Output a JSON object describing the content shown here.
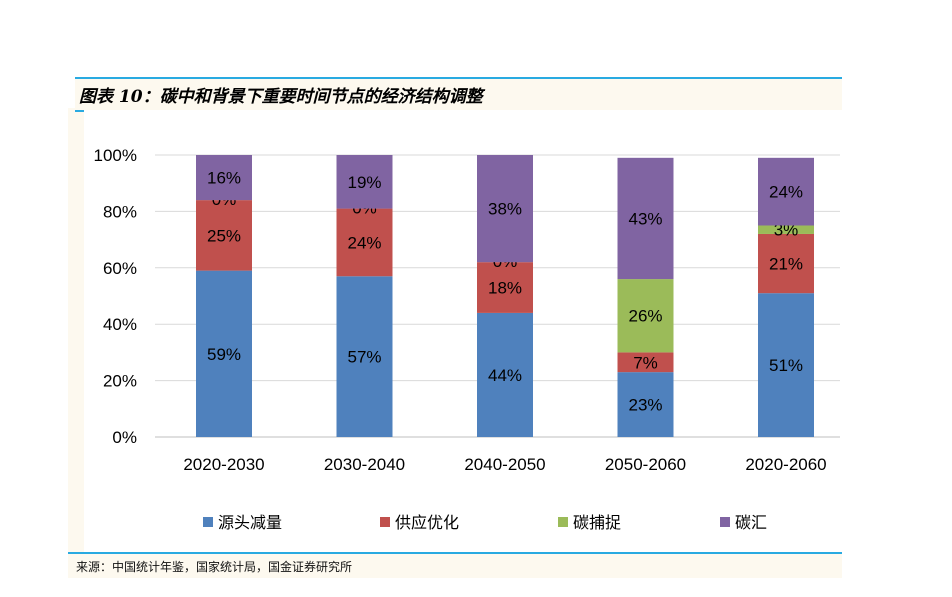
{
  "title": "图表 10：碳中和背景下重要时间节点的经济结构调整",
  "source": "来源：中国统计年鉴，国家统计局，国金证券研究所",
  "chart_data": {
    "type": "bar",
    "stacked": true,
    "categories": [
      "2020-2030",
      "2030-2040",
      "2040-2050",
      "2050-2060",
      "2020-2060"
    ],
    "series": [
      {
        "name": "源头减量",
        "color": "#4f81bd",
        "values": [
          59,
          57,
          44,
          23,
          51
        ]
      },
      {
        "name": "供应优化",
        "color": "#c0504d",
        "values": [
          25,
          24,
          18,
          7,
          21
        ]
      },
      {
        "name": "碳捕捉",
        "color": "#9bbb59",
        "values": [
          0,
          0,
          0,
          26,
          3
        ]
      },
      {
        "name": "碳汇",
        "color": "#8064a2",
        "values": [
          16,
          19,
          38,
          43,
          24
        ]
      }
    ],
    "ylim": [
      0,
      100
    ],
    "yticks": [
      "0%",
      "20%",
      "40%",
      "60%",
      "80%",
      "100%"
    ],
    "grid": true,
    "legend": "bottom"
  }
}
